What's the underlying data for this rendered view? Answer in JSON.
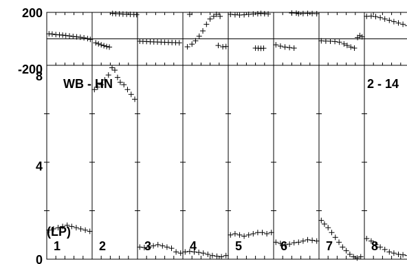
{
  "chart_data": {
    "type": "scatter",
    "panel_labels": [
      "1",
      "2",
      "3",
      "4",
      "5",
      "6",
      "7",
      "8"
    ],
    "title_left": "WB - HN",
    "title_right": "2 - 14",
    "upper_axis": {
      "ylim": [
        -200,
        200
      ],
      "ticks": [
        "200",
        "-200"
      ]
    },
    "lower_axis": {
      "ylim": [
        0,
        8
      ],
      "ticks": [
        "8",
        "4",
        "0"
      ]
    },
    "lower_ylabel": "(LP)",
    "panels": [
      {
        "label": "1",
        "phase": [
          [
            0.05,
            38
          ],
          [
            0.12,
            36
          ],
          [
            0.2,
            32
          ],
          [
            0.28,
            30
          ],
          [
            0.35,
            28
          ],
          [
            0.42,
            25
          ],
          [
            0.5,
            22
          ],
          [
            0.58,
            18
          ],
          [
            0.66,
            15
          ],
          [
            0.74,
            12
          ],
          [
            0.82,
            8
          ],
          [
            0.9,
            2
          ],
          [
            0.96,
            -4
          ]
        ],
        "amp": [
          [
            0.05,
            1.2
          ],
          [
            0.15,
            1.25
          ],
          [
            0.25,
            1.3
          ],
          [
            0.35,
            1.35
          ],
          [
            0.45,
            1.4
          ],
          [
            0.55,
            1.35
          ],
          [
            0.65,
            1.3
          ],
          [
            0.75,
            1.25
          ],
          [
            0.85,
            1.2
          ],
          [
            0.95,
            1.15
          ]
        ]
      },
      {
        "label": "2",
        "phase": [
          [
            0.08,
            -30
          ],
          [
            0.14,
            -38
          ],
          [
            0.2,
            -45
          ],
          [
            0.26,
            -52
          ],
          [
            0.32,
            -58
          ],
          [
            0.38,
            -62
          ],
          [
            0.45,
            192
          ],
          [
            0.52,
            190
          ],
          [
            0.6,
            189
          ],
          [
            0.68,
            187
          ],
          [
            0.76,
            186
          ],
          [
            0.84,
            185
          ],
          [
            0.92,
            184
          ],
          [
            0.98,
            183
          ]
        ],
        "amp": [
          [
            0.05,
            7.0
          ],
          [
            0.12,
            7.1
          ],
          [
            0.2,
            7.2
          ],
          [
            0.28,
            7.4
          ],
          [
            0.36,
            7.6
          ],
          [
            0.44,
            7.9
          ],
          [
            0.5,
            7.8
          ],
          [
            0.56,
            7.5
          ],
          [
            0.62,
            7.3
          ],
          [
            0.7,
            7.2
          ],
          [
            0.78,
            7.0
          ],
          [
            0.86,
            6.8
          ],
          [
            0.94,
            6.6
          ]
        ]
      },
      {
        "label": "3",
        "phase": [
          [
            0.05,
            -18
          ],
          [
            0.12,
            -19
          ],
          [
            0.2,
            -20
          ],
          [
            0.28,
            -22
          ],
          [
            0.36,
            -23
          ],
          [
            0.44,
            -24
          ],
          [
            0.52,
            -25
          ],
          [
            0.6,
            -26
          ],
          [
            0.68,
            -27
          ],
          [
            0.76,
            -28
          ],
          [
            0.84,
            -29
          ],
          [
            0.92,
            -30
          ]
        ],
        "amp": [
          [
            0.05,
            0.5
          ],
          [
            0.15,
            0.48
          ],
          [
            0.25,
            0.5
          ],
          [
            0.35,
            0.55
          ],
          [
            0.45,
            0.6
          ],
          [
            0.55,
            0.55
          ],
          [
            0.65,
            0.5
          ],
          [
            0.75,
            0.45
          ],
          [
            0.85,
            0.3
          ],
          [
            0.95,
            0.25
          ]
        ]
      },
      {
        "label": "4",
        "phase": [
          [
            0.1,
            -60
          ],
          [
            0.2,
            -40
          ],
          [
            0.28,
            -15
          ],
          [
            0.36,
            20
          ],
          [
            0.44,
            60
          ],
          [
            0.52,
            110
          ],
          [
            0.6,
            150
          ],
          [
            0.68,
            170
          ],
          [
            0.74,
            185
          ],
          [
            0.82,
            170
          ],
          [
            0.78,
            -50
          ],
          [
            0.88,
            -60
          ],
          [
            0.95,
            -58
          ],
          [
            0.15,
            185
          ]
        ],
        "amp": [
          [
            0.05,
            0.3
          ],
          [
            0.15,
            0.32
          ],
          [
            0.25,
            0.3
          ],
          [
            0.35,
            0.28
          ],
          [
            0.45,
            0.25
          ],
          [
            0.55,
            0.2
          ],
          [
            0.65,
            0.15
          ],
          [
            0.75,
            0.12
          ],
          [
            0.85,
            0.1
          ],
          [
            0.95,
            0.15
          ]
        ]
      },
      {
        "label": "5",
        "phase": [
          [
            0.05,
            185
          ],
          [
            0.15,
            182
          ],
          [
            0.25,
            180
          ],
          [
            0.35,
            182
          ],
          [
            0.45,
            185
          ],
          [
            0.55,
            188
          ],
          [
            0.65,
            190
          ],
          [
            0.72,
            192
          ],
          [
            0.8,
            190
          ],
          [
            0.88,
            188
          ],
          [
            0.6,
            -70
          ],
          [
            0.66,
            -71
          ],
          [
            0.72,
            -72
          ],
          [
            0.78,
            -71
          ]
        ],
        "amp": [
          [
            0.05,
            1.0
          ],
          [
            0.15,
            1.05
          ],
          [
            0.25,
            1.0
          ],
          [
            0.35,
            0.95
          ],
          [
            0.45,
            1.0
          ],
          [
            0.55,
            1.05
          ],
          [
            0.65,
            1.1
          ],
          [
            0.75,
            1.1
          ],
          [
            0.85,
            1.05
          ],
          [
            0.95,
            1.1
          ]
        ]
      },
      {
        "label": "6",
        "phase": [
          [
            0.05,
            -45
          ],
          [
            0.15,
            -55
          ],
          [
            0.25,
            -62
          ],
          [
            0.35,
            -66
          ],
          [
            0.45,
            -70
          ],
          [
            0.55,
            190
          ],
          [
            0.65,
            191
          ],
          [
            0.75,
            192
          ],
          [
            0.85,
            191
          ],
          [
            0.95,
            190
          ],
          [
            0.4,
            195
          ],
          [
            0.5,
            194
          ]
        ],
        "amp": [
          [
            0.05,
            0.7
          ],
          [
            0.15,
            0.65
          ],
          [
            0.25,
            0.6
          ],
          [
            0.35,
            0.62
          ],
          [
            0.45,
            0.68
          ],
          [
            0.55,
            0.7
          ],
          [
            0.65,
            0.75
          ],
          [
            0.75,
            0.8
          ],
          [
            0.85,
            0.78
          ],
          [
            0.95,
            0.75
          ]
        ]
      },
      {
        "label": "7",
        "phase": [
          [
            0.05,
            -15
          ],
          [
            0.15,
            -17
          ],
          [
            0.25,
            -18
          ],
          [
            0.35,
            -20
          ],
          [
            0.45,
            -25
          ],
          [
            0.55,
            -38
          ],
          [
            0.62,
            -50
          ],
          [
            0.7,
            -62
          ],
          [
            0.78,
            -70
          ],
          [
            0.85,
            10
          ],
          [
            0.9,
            25
          ],
          [
            0.95,
            15
          ]
        ],
        "amp": [
          [
            0.05,
            1.6
          ],
          [
            0.12,
            1.45
          ],
          [
            0.2,
            1.3
          ],
          [
            0.28,
            1.1
          ],
          [
            0.36,
            0.9
          ],
          [
            0.44,
            0.7
          ],
          [
            0.52,
            0.5
          ],
          [
            0.6,
            0.35
          ],
          [
            0.68,
            0.2
          ],
          [
            0.76,
            0.1
          ],
          [
            0.84,
            0.05
          ],
          [
            0.92,
            0.1
          ]
        ]
      },
      {
        "label": "8",
        "phase": [
          [
            0.05,
            170
          ],
          [
            0.15,
            172
          ],
          [
            0.25,
            168
          ],
          [
            0.35,
            160
          ],
          [
            0.45,
            150
          ],
          [
            0.55,
            140
          ],
          [
            0.65,
            130
          ],
          [
            0.75,
            120
          ],
          [
            0.85,
            110
          ],
          [
            0.95,
            100
          ]
        ],
        "amp": [
          [
            0.05,
            0.85
          ],
          [
            0.15,
            0.75
          ],
          [
            0.25,
            0.6
          ],
          [
            0.35,
            0.5
          ],
          [
            0.45,
            0.4
          ],
          [
            0.55,
            0.3
          ],
          [
            0.65,
            0.25
          ],
          [
            0.75,
            0.2
          ],
          [
            0.85,
            0.18
          ],
          [
            0.95,
            0.15
          ]
        ]
      }
    ]
  }
}
